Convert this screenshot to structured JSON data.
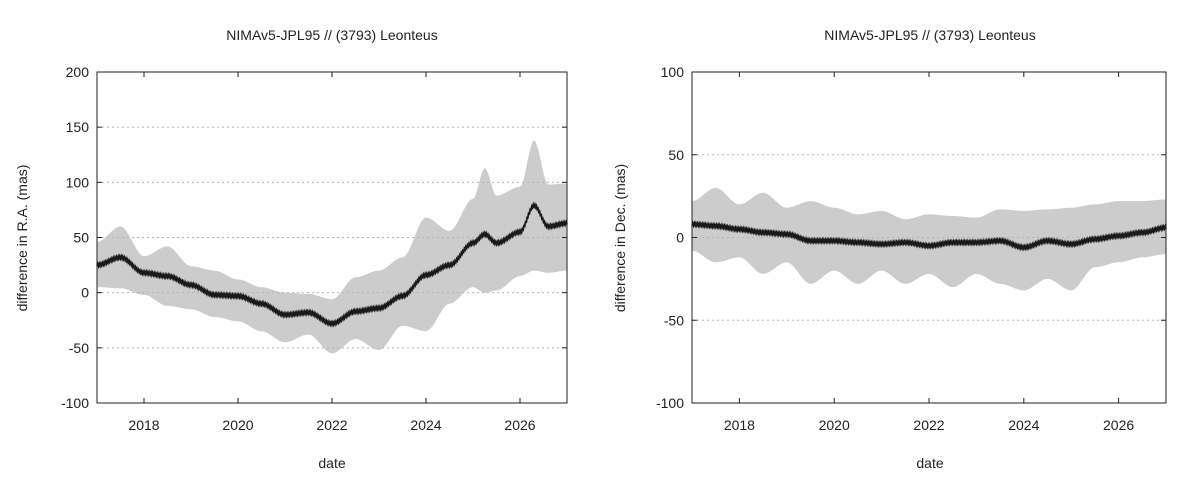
{
  "chart_data": [
    {
      "type": "area",
      "title": "NIMAv5-JPL95 // (3793) Leonteus",
      "xlabel": "date",
      "ylabel": "difference in R.A. (mas)",
      "xlim": [
        2017.0,
        2027.0
      ],
      "ylim": [
        -100,
        200
      ],
      "x_ticks": [
        2018,
        2020,
        2022,
        2024,
        2026
      ],
      "y_ticks": [
        -100,
        -50,
        0,
        50,
        100,
        150,
        200
      ],
      "grid": "horizontal dotted",
      "colors": {
        "band": "#cccccc",
        "line": "#1a1a1a",
        "grid": "#b5b5b5"
      },
      "series": [
        {
          "x": [
            2017.0,
            2017.5,
            2018.0,
            2018.5,
            2019.0,
            2019.5,
            2020.0,
            2020.5,
            2021.0,
            2021.5,
            2022.0,
            2022.5,
            2023.0,
            2023.5,
            2024.0,
            2024.5,
            2025.0,
            2025.25,
            2025.5,
            2026.0,
            2026.3,
            2026.6,
            2027.0
          ],
          "y": [
            25,
            32,
            18,
            15,
            7,
            -2,
            -3,
            -10,
            -20,
            -18,
            -28,
            -17,
            -14,
            -3,
            16,
            25,
            45,
            53,
            45,
            55,
            79,
            60,
            63
          ]
        },
        {
          "x": [
            2017.0,
            2017.5,
            2018.0,
            2018.5,
            2019.0,
            2019.5,
            2020.0,
            2020.5,
            2021.0,
            2021.5,
            2022.0,
            2022.5,
            2023.0,
            2023.5,
            2024.0,
            2024.5,
            2025.0,
            2025.25,
            2025.5,
            2026.0,
            2026.3,
            2026.6,
            2027.0
          ],
          "y": [
            46,
            60,
            33,
            42,
            24,
            20,
            12,
            5,
            0,
            -1,
            -6,
            14,
            20,
            32,
            68,
            56,
            85,
            113,
            88,
            96,
            138,
            98,
            99
          ]
        },
        {
          "x": [
            2017.0,
            2017.5,
            2018.0,
            2018.5,
            2019.0,
            2019.5,
            2020.0,
            2020.5,
            2021.0,
            2021.5,
            2022.0,
            2022.5,
            2023.0,
            2023.5,
            2024.0,
            2024.5,
            2025.0,
            2025.25,
            2025.5,
            2026.0,
            2026.3,
            2026.6,
            2027.0
          ],
          "y": [
            5,
            4,
            -2,
            -12,
            -15,
            -22,
            -26,
            -35,
            -45,
            -38,
            -55,
            -42,
            -52,
            -30,
            -35,
            -10,
            5,
            0,
            2,
            15,
            20,
            18,
            20
          ]
        }
      ]
    },
    {
      "type": "area",
      "title": "NIMAv5-JPL95 // (3793) Leonteus",
      "xlabel": "date",
      "ylabel": "difference in Dec. (mas)",
      "xlim": [
        2017.0,
        2027.0
      ],
      "ylim": [
        -100,
        100
      ],
      "x_ticks": [
        2018,
        2020,
        2022,
        2024,
        2026
      ],
      "y_ticks": [
        -100,
        -50,
        0,
        50,
        100
      ],
      "grid": "horizontal dotted",
      "colors": {
        "band": "#cccccc",
        "line": "#1a1a1a",
        "grid": "#b5b5b5"
      },
      "series": [
        {
          "x": [
            2017.0,
            2017.5,
            2018.0,
            2018.5,
            2019.0,
            2019.5,
            2020.0,
            2020.5,
            2021.0,
            2021.5,
            2022.0,
            2022.5,
            2023.0,
            2023.5,
            2024.0,
            2024.5,
            2025.0,
            2025.5,
            2026.0,
            2026.5,
            2027.0
          ],
          "y": [
            8,
            7,
            5,
            3,
            2,
            -2,
            -2,
            -3,
            -4,
            -3,
            -5,
            -3,
            -3,
            -2,
            -6,
            -2,
            -4,
            -1,
            1,
            3,
            6
          ]
        },
        {
          "x": [
            2017.0,
            2017.5,
            2018.0,
            2018.5,
            2019.0,
            2019.5,
            2020.0,
            2020.5,
            2021.0,
            2021.5,
            2022.0,
            2022.5,
            2023.0,
            2023.5,
            2024.0,
            2024.5,
            2025.0,
            2025.5,
            2026.0,
            2026.5,
            2027.0
          ],
          "y": [
            22,
            30,
            20,
            27,
            18,
            22,
            18,
            14,
            16,
            11,
            14,
            13,
            12,
            17,
            16,
            17,
            18,
            20,
            22,
            22,
            23
          ]
        },
        {
          "x": [
            2017.0,
            2017.5,
            2018.0,
            2018.5,
            2019.0,
            2019.5,
            2020.0,
            2020.5,
            2021.0,
            2021.5,
            2022.0,
            2022.5,
            2023.0,
            2023.5,
            2024.0,
            2024.5,
            2025.0,
            2025.5,
            2026.0,
            2026.5,
            2027.0
          ],
          "y": [
            -8,
            -15,
            -12,
            -22,
            -15,
            -28,
            -20,
            -28,
            -20,
            -28,
            -22,
            -30,
            -22,
            -28,
            -32,
            -25,
            -32,
            -18,
            -15,
            -12,
            -10
          ]
        }
      ]
    }
  ]
}
